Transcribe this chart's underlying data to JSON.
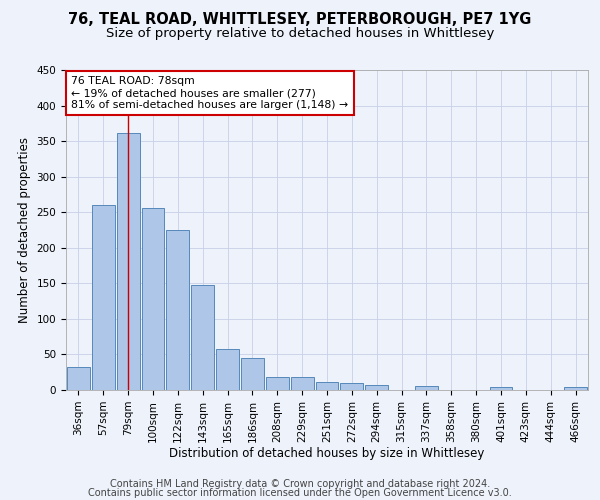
{
  "title": "76, TEAL ROAD, WHITTLESEY, PETERBOROUGH, PE7 1YG",
  "subtitle": "Size of property relative to detached houses in Whittlesey",
  "xlabel": "Distribution of detached houses by size in Whittlesey",
  "ylabel": "Number of detached properties",
  "categories": [
    "36sqm",
    "57sqm",
    "79sqm",
    "100sqm",
    "122sqm",
    "143sqm",
    "165sqm",
    "186sqm",
    "208sqm",
    "229sqm",
    "251sqm",
    "272sqm",
    "294sqm",
    "315sqm",
    "337sqm",
    "358sqm",
    "380sqm",
    "401sqm",
    "423sqm",
    "444sqm",
    "466sqm"
  ],
  "values": [
    32,
    260,
    362,
    256,
    225,
    148,
    57,
    45,
    18,
    18,
    11,
    10,
    7,
    0,
    6,
    0,
    0,
    4,
    0,
    0,
    4
  ],
  "bar_color": "#aec6e8",
  "bar_edge_color": "#5588bb",
  "vline_x_index": 2,
  "annotation_line1": "76 TEAL ROAD: 78sqm",
  "annotation_line2": "← 19% of detached houses are smaller (277)",
  "annotation_line3": "81% of semi-detached houses are larger (1,148) →",
  "annotation_box_color": "#ffffff",
  "annotation_border_color": "#cc0000",
  "vline_color": "#cc0000",
  "ylim": [
    0,
    450
  ],
  "yticks": [
    0,
    50,
    100,
    150,
    200,
    250,
    300,
    350,
    400,
    450
  ],
  "footer_line1": "Contains HM Land Registry data © Crown copyright and database right 2024.",
  "footer_line2": "Contains public sector information licensed under the Open Government Licence v3.0.",
  "background_color": "#eef2fb",
  "grid_color": "#c8d0e8",
  "title_fontsize": 10.5,
  "subtitle_fontsize": 9.5,
  "axis_label_fontsize": 8.5,
  "tick_fontsize": 7.5,
  "footer_fontsize": 7
}
